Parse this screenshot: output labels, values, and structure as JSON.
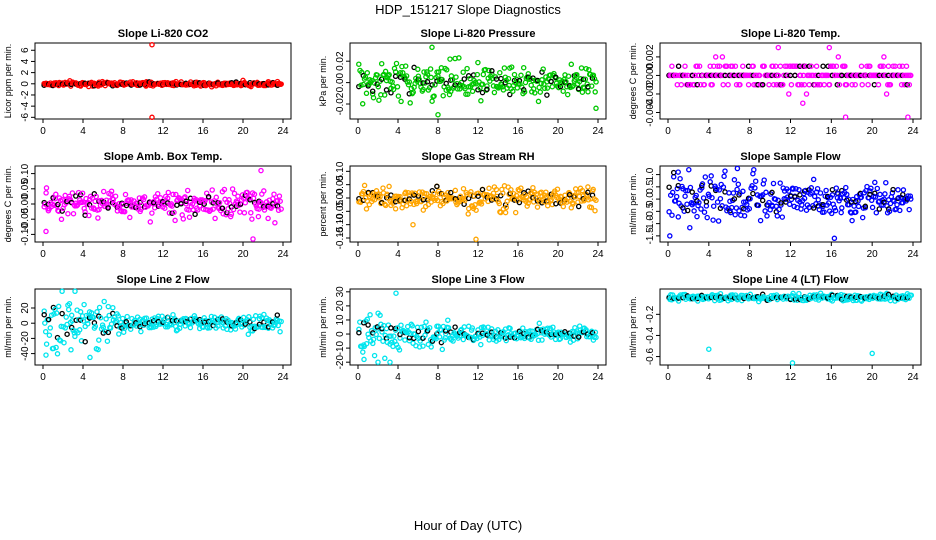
{
  "figure": {
    "title": "HDP_151217  Slope Diagnostics",
    "xlabel": "Hour of Day (UTC)"
  },
  "chart_data": [
    {
      "type": "scatter",
      "title": "Slope Li-820 CO2",
      "ylabel": "Licor ppm per min.",
      "color": "#ff0000",
      "xlim": [
        0,
        24
      ],
      "ylim": [
        -6.3,
        7.3
      ],
      "xticks": [
        "0",
        "4",
        "8",
        "12",
        "16",
        "20",
        "24"
      ],
      "yticks": [
        {
          "v": -6,
          "t": "-6"
        },
        {
          "v": -4,
          "t": "-4"
        },
        {
          "v": -2,
          "t": "-2"
        },
        {
          "v": 0,
          "t": "0"
        },
        {
          "v": 2,
          "t": "2"
        },
        {
          "v": 4,
          "t": "4"
        },
        {
          "v": 6,
          "t": "6"
        }
      ],
      "series_params": {
        "base": 0,
        "spread": 0.35,
        "taper": 0,
        "quant": 0,
        "min": -0.7,
        "max": 0.7
      },
      "outliers": [
        {
          "x": 10.9,
          "y": 7.0
        },
        {
          "x": 10.9,
          "y": -6.0
        },
        {
          "x": 10.3,
          "y": -0.4
        },
        {
          "x": 20.0,
          "y": 0.6
        }
      ]
    },
    {
      "type": "scatter",
      "title": "Slope Li-820 Pressure",
      "ylabel": "kPa per min.",
      "color": "#00c800",
      "xlim": [
        0,
        24
      ],
      "ylim": [
        -0.034,
        0.037
      ],
      "xticks": [
        "0",
        "4",
        "8",
        "12",
        "16",
        "20",
        "24"
      ],
      "yticks": [
        {
          "v": -0.02,
          "t": "-0.02"
        },
        {
          "v": 0,
          "t": "0.00"
        },
        {
          "v": 0.02,
          "t": "0.02"
        }
      ],
      "series_params": {
        "base": 0,
        "spread": 0.012,
        "taper": 0.35,
        "quant": 0,
        "min": -0.03,
        "max": 0.035
      },
      "outliers": [
        {
          "x": 7.4,
          "y": 0.033
        },
        {
          "x": 8.0,
          "y": -0.03
        },
        {
          "x": 9.2,
          "y": 0.022
        },
        {
          "x": 23.8,
          "y": -0.024
        }
      ]
    },
    {
      "type": "scatter",
      "title": "Slope Li-820 Temp.",
      "ylabel": "degrees C per min.",
      "color": "#ff00ff",
      "xlim": [
        0,
        24
      ],
      "ylim": [
        -0.0047,
        0.0035
      ],
      "xticks": [
        "0",
        "4",
        "8",
        "12",
        "16",
        "20",
        "24"
      ],
      "yticks": [
        {
          "v": -0.004,
          "t": "-0.004"
        },
        {
          "v": -0.002,
          "t": "-0.002"
        },
        {
          "v": 0,
          "t": "0.000"
        },
        {
          "v": 0.002,
          "t": "0.002"
        }
      ],
      "series_params": {
        "base": 0,
        "spread": 0.0012,
        "taper": 0,
        "quant": 0.001,
        "min": -0.002,
        "max": 0.002
      },
      "outliers": [
        {
          "x": 10.8,
          "y": 0.003
        },
        {
          "x": 13.2,
          "y": -0.003
        },
        {
          "x": 17.4,
          "y": -0.0045
        },
        {
          "x": 23.5,
          "y": -0.0045
        },
        {
          "x": 15.8,
          "y": 0.003
        }
      ]
    },
    {
      "type": "scatter",
      "title": "Slope Amb. Box Temp.",
      "ylabel": "degrees C per min.",
      "color": "#ff00ff",
      "xlim": [
        0,
        24
      ],
      "ylim": [
        -0.125,
        0.125
      ],
      "xticks": [
        "0",
        "4",
        "8",
        "12",
        "16",
        "20",
        "24"
      ],
      "yticks": [
        {
          "v": -0.1,
          "t": "-0.10"
        },
        {
          "v": -0.05,
          "t": "-0.05"
        },
        {
          "v": 0,
          "t": "0.00"
        },
        {
          "v": 0.05,
          "t": "0.05"
        },
        {
          "v": 0.1,
          "t": "0.10"
        }
      ],
      "series_params": {
        "base": 0,
        "spread": 0.038,
        "taper": 0,
        "quant": 0,
        "min": -0.11,
        "max": 0.11
      },
      "outliers": [
        {
          "x": 21.8,
          "y": 0.11
        },
        {
          "x": 21.0,
          "y": -0.115
        },
        {
          "x": 0.3,
          "y": -0.09
        }
      ]
    },
    {
      "type": "scatter",
      "title": "Slope Gas Stream RH",
      "ylabel": "percent per min.",
      "color": "#ffa500",
      "xlim": [
        0,
        24
      ],
      "ylim": [
        -0.165,
        0.12
      ],
      "xticks": [
        "0",
        "4",
        "8",
        "12",
        "16",
        "20",
        "24"
      ],
      "yticks": [
        {
          "v": -0.15,
          "t": "-0.15"
        },
        {
          "v": -0.1,
          "t": "-0.10"
        },
        {
          "v": -0.05,
          "t": "-0.05"
        },
        {
          "v": 0,
          "t": "0.00"
        },
        {
          "v": 0.05,
          "t": "0.05"
        },
        {
          "v": 0.1,
          "t": "0.10"
        }
      ],
      "series_params": {
        "base": 0,
        "spread": 0.04,
        "taper": 0,
        "quant": 0,
        "min": -0.1,
        "max": 0.1
      },
      "outliers": [
        {
          "x": 11.8,
          "y": -0.155
        },
        {
          "x": 5.5,
          "y": -0.1
        }
      ]
    },
    {
      "type": "scatter",
      "title": "Slope Sample Flow",
      "ylabel": "ml/min per min.",
      "color": "#0000ff",
      "xlim": [
        0,
        24
      ],
      "ylim": [
        -1.75,
        1.35
      ],
      "xticks": [
        "0",
        "4",
        "8",
        "12",
        "16",
        "20",
        "24"
      ],
      "yticks": [
        {
          "v": -1.5,
          "t": "-1.5"
        },
        {
          "v": -1,
          "t": "-1.0"
        },
        {
          "v": -0.5,
          "t": "-0.5"
        },
        {
          "v": 0,
          "t": "0.0"
        },
        {
          "v": 0.5,
          "t": "0.5"
        },
        {
          "v": 1,
          "t": "1.0"
        }
      ],
      "series_params": {
        "base": 0,
        "spread": 0.5,
        "taper": 0.8,
        "quant": 0,
        "min": -1.5,
        "max": 1.2
      },
      "outliers": [
        {
          "x": 16.3,
          "y": -1.6
        },
        {
          "x": 1.0,
          "y": 1.1
        },
        {
          "x": 6.8,
          "y": 1.25
        }
      ]
    },
    {
      "type": "scatter",
      "title": "Slope Line 2 Flow",
      "ylabel": "ml/min per min.",
      "color": "#00e5ee",
      "xlim": [
        0,
        24
      ],
      "ylim": [
        -55,
        45
      ],
      "xticks": [
        "0",
        "4",
        "8",
        "12",
        "16",
        "20",
        "24"
      ],
      "yticks": [
        {
          "v": -40,
          "t": "-40"
        },
        {
          "v": -20,
          "t": "-20"
        },
        {
          "v": 0,
          "t": "0"
        },
        {
          "v": 20,
          "t": "20"
        }
      ],
      "series_params": {
        "base": 0,
        "spread": 18,
        "taper": 0.95,
        "taper_end": 8.5,
        "quant": 0,
        "min": -45,
        "max": 42
      },
      "outliers": [
        {
          "x": 3.2,
          "y": 42
        },
        {
          "x": 0.3,
          "y": -42
        },
        {
          "x": 4.7,
          "y": -45
        },
        {
          "x": 2.8,
          "y": -35
        }
      ]
    },
    {
      "type": "scatter",
      "title": "Slope Line 3 Flow",
      "ylabel": "ml/min per min.",
      "color": "#00e5ee",
      "xlim": [
        0,
        24
      ],
      "ylim": [
        -22,
        32
      ],
      "xticks": [
        "0",
        "4",
        "8",
        "12",
        "16",
        "20",
        "24"
      ],
      "yticks": [
        {
          "v": -20,
          "t": "-20"
        },
        {
          "v": -10,
          "t": "-10"
        },
        {
          "v": 0,
          "t": "0"
        },
        {
          "v": 10,
          "t": "10"
        },
        {
          "v": 20,
          "t": "20"
        },
        {
          "v": 30,
          "t": "30"
        }
      ],
      "series_params": {
        "base": 0,
        "spread": 7,
        "taper": 0.6,
        "taper_end": 10,
        "quant": 0,
        "min": -20,
        "max": 28
      },
      "outliers": [
        {
          "x": 3.8,
          "y": 29
        },
        {
          "x": 0.6,
          "y": -18
        },
        {
          "x": 2.0,
          "y": -20
        },
        {
          "x": 3.2,
          "y": -20
        }
      ]
    },
    {
      "type": "scatter",
      "title": "Slope Line 4 (LT) Flow",
      "ylabel": "ml/min per min.",
      "color": "#00e5ee",
      "xlim": [
        0,
        24
      ],
      "ylim": [
        -0.68,
        0.04
      ],
      "xticks": [
        "0",
        "4",
        "8",
        "12",
        "16",
        "20",
        "24"
      ],
      "yticks": [
        {
          "v": -0.6,
          "t": "-0.6"
        },
        {
          "v": -0.4,
          "t": "-0.4"
        },
        {
          "v": -0.2,
          "t": "-0.2"
        }
      ],
      "series_params": {
        "base": -0.04,
        "spread": 0.03,
        "taper": 0,
        "quant": 0,
        "min": -0.12,
        "max": 0.02
      },
      "outliers": [
        {
          "x": 4.0,
          "y": -0.53
        },
        {
          "x": 12.2,
          "y": -0.66
        },
        {
          "x": 20.0,
          "y": -0.57
        }
      ]
    }
  ]
}
